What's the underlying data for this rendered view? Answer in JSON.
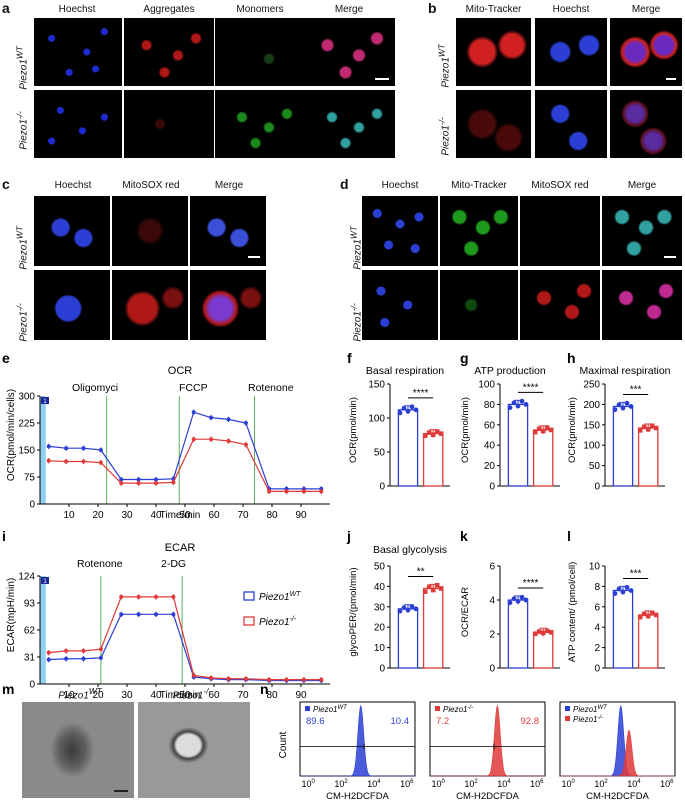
{
  "colors": {
    "wt": "#2b3fd4",
    "ko": "#e03a3a",
    "blue_band": "#8fd0f3"
  },
  "panel_a": {
    "label": "a",
    "cols": [
      "Hoechst",
      "Aggregates",
      "Monomers",
      "Merge"
    ],
    "rows": [
      "Piezo1",
      "Piezo1"
    ],
    "sup_wt": "WT",
    "sup_ko": "-/-"
  },
  "panel_b": {
    "label": "b",
    "cols": [
      "Mito-Tracker",
      "Hoechst",
      "Merge"
    ]
  },
  "panel_c": {
    "label": "c",
    "cols": [
      "Hoechst",
      "MitoSOX red",
      "Merge"
    ]
  },
  "panel_d": {
    "label": "d",
    "cols": [
      "Hoechst",
      "Mito-Tracker",
      "MitoSOX red",
      "Merge"
    ]
  },
  "panel_e": {
    "label": "e",
    "title": "OCR",
    "ylabel": "OCR(pmol/min/cells)",
    "xlabel": "Time/min",
    "markers": [
      "Oligomyci",
      "FCCP",
      "Rotenone"
    ],
    "badge": "1"
  },
  "panel_f": {
    "label": "f",
    "title": "Basal respiration",
    "ylabel": "OCR(pmol/min)",
    "sig": "****"
  },
  "panel_g": {
    "label": "g",
    "title": "ATP production",
    "ylabel": "OCR(pmol/min)",
    "sig": "****"
  },
  "panel_h": {
    "label": "h",
    "title": "Maximal respiration",
    "ylabel": "OCR(pmol/min)",
    "sig": "***"
  },
  "panel_i": {
    "label": "i",
    "title": "ECAR",
    "ylabel": "ECAR(mpH/min)",
    "xlabel": "Time/min",
    "markers": [
      "Rotenone",
      "2-DG"
    ],
    "badge": "1",
    "legend": [
      "Piezo1",
      "Piezo1"
    ]
  },
  "panel_j": {
    "label": "j",
    "title": "Basal glycolysis",
    "ylabel": "glycoPER/(pmol/min)",
    "sig": "**"
  },
  "panel_k": {
    "label": "k",
    "ylabel": "OCR/ECAR",
    "sig": "****"
  },
  "panel_l": {
    "label": "l",
    "ylabel": "ATP content/ (pmol/cell)",
    "sig": "***"
  },
  "panel_m": {
    "label": "m",
    "cols": [
      "Piezo1",
      "Piezo1"
    ]
  },
  "panel_n": {
    "label": "n",
    "ylabel": "Count",
    "xlabel": "CM-H2DCFDA",
    "gate1": [
      "89.6",
      "10.4"
    ],
    "gate2": [
      "7.2",
      "92.8"
    ]
  },
  "chart_data": [
    {
      "id": "e",
      "type": "line",
      "x": [
        3,
        9,
        15,
        21,
        28,
        34,
        40,
        46,
        53,
        59,
        65,
        71,
        79,
        85,
        91,
        97
      ],
      "series": [
        {
          "name": "Piezo1 WT",
          "values": [
            160,
            155,
            155,
            150,
            68,
            68,
            68,
            70,
            255,
            240,
            235,
            225,
            42,
            42,
            42,
            42
          ]
        },
        {
          "name": "Piezo1 -/-",
          "values": [
            120,
            118,
            118,
            115,
            58,
            58,
            58,
            60,
            180,
            180,
            175,
            165,
            35,
            35,
            35,
            35
          ]
        }
      ],
      "xlim": [
        0,
        100
      ],
      "ylim": [
        0,
        300
      ],
      "yticks": [
        0,
        75,
        150,
        225,
        300
      ],
      "xticks": [
        10,
        20,
        30,
        40,
        50,
        60,
        70,
        80,
        90
      ]
    },
    {
      "id": "i",
      "type": "line",
      "x": [
        3,
        9,
        15,
        21,
        28,
        34,
        40,
        46,
        53,
        59,
        65,
        71,
        79,
        85,
        91,
        97
      ],
      "series": [
        {
          "name": "Piezo1 WT",
          "values": [
            28,
            29,
            29,
            30,
            80,
            80,
            80,
            80,
            8,
            6,
            5,
            5,
            4,
            4,
            4,
            4
          ]
        },
        {
          "name": "Piezo1 -/-",
          "values": [
            36,
            38,
            38,
            40,
            100,
            100,
            100,
            100,
            10,
            7,
            6,
            6,
            5,
            5,
            5,
            5
          ]
        }
      ],
      "xlim": [
        0,
        100
      ],
      "ylim": [
        0,
        124
      ],
      "yticks": [
        0,
        31,
        62,
        93,
        124
      ],
      "xticks": [
        10,
        20,
        30,
        40,
        50,
        60,
        70,
        80,
        90
      ]
    },
    {
      "id": "f",
      "type": "bar",
      "categories": [
        "WT",
        "-/-"
      ],
      "values": [
        112,
        77
      ],
      "ylim": [
        0,
        150
      ],
      "yticks": [
        0,
        50,
        100,
        150
      ]
    },
    {
      "id": "g",
      "type": "bar",
      "categories": [
        "WT",
        "-/-"
      ],
      "values": [
        80,
        55
      ],
      "ylim": [
        0,
        100
      ],
      "yticks": [
        0,
        20,
        40,
        60,
        80,
        100
      ]
    },
    {
      "id": "h",
      "type": "bar",
      "categories": [
        "WT",
        "-/-"
      ],
      "values": [
        195,
        142
      ],
      "ylim": [
        0,
        250
      ],
      "yticks": [
        0,
        50,
        100,
        150,
        200,
        250
      ]
    },
    {
      "id": "j",
      "type": "bar",
      "categories": [
        "WT",
        "-/-"
      ],
      "values": [
        29,
        39
      ],
      "ylim": [
        0,
        50
      ],
      "yticks": [
        0,
        10,
        20,
        30,
        40,
        50
      ]
    },
    {
      "id": "k",
      "type": "bar",
      "categories": [
        "WT",
        "-/-"
      ],
      "values": [
        4.0,
        2.1
      ],
      "ylim": [
        0,
        6
      ],
      "yticks": [
        0,
        2,
        4,
        6
      ]
    },
    {
      "id": "l",
      "type": "bar",
      "categories": [
        "WT",
        "-/-"
      ],
      "values": [
        7.6,
        5.2
      ],
      "ylim": [
        0,
        10
      ],
      "yticks": [
        0,
        2,
        4,
        6,
        8,
        10
      ]
    }
  ]
}
